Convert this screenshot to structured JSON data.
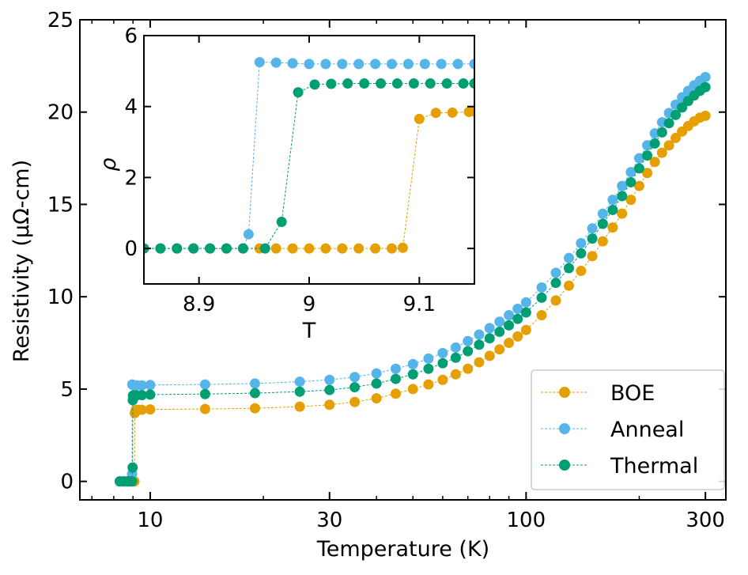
{
  "chart_data": [
    {
      "type": "line",
      "subtype": "scatter-line",
      "xscale": "log",
      "xlabel": "Temperature (K)",
      "ylabel": "Resistivity (μΩ-cm)",
      "xlim": [
        6.5,
        340
      ],
      "ylim": [
        -1,
        25
      ],
      "xticks": [
        10,
        30,
        100,
        300
      ],
      "xtick_labels": [
        "10",
        "30",
        "100",
        "300"
      ],
      "yticks": [
        0,
        5,
        10,
        15,
        20,
        25
      ],
      "ytick_labels": [
        "0",
        "5",
        "10",
        "15",
        "20",
        "25"
      ],
      "legend": {
        "position": "bottom-right",
        "entries": [
          "BOE",
          "Anneal",
          "Thermal"
        ]
      },
      "series": [
        {
          "name": "BOE",
          "color": "#E69F00",
          "x": [
            8.3,
            8.5,
            8.7,
            8.8,
            8.9,
            9.0,
            9.08,
            9.1,
            9.15,
            9.2,
            9.3,
            9.5,
            10,
            14,
            19,
            25,
            30,
            35,
            40,
            45,
            50,
            55,
            60,
            65,
            70,
            75,
            80,
            85,
            90,
            95,
            100,
            110,
            120,
            130,
            140,
            150,
            160,
            170,
            180,
            190,
            200,
            210,
            220,
            230,
            240,
            250,
            260,
            270,
            280,
            290,
            300
          ],
          "y": [
            0,
            0,
            0,
            0,
            0,
            0,
            0,
            3.7,
            3.85,
            3.87,
            3.88,
            3.88,
            3.9,
            3.92,
            3.96,
            4.05,
            4.15,
            4.3,
            4.5,
            4.75,
            5.0,
            5.25,
            5.5,
            5.8,
            6.1,
            6.45,
            6.8,
            7.15,
            7.5,
            7.85,
            8.2,
            9.0,
            9.8,
            10.6,
            11.4,
            12.2,
            13.0,
            13.75,
            14.5,
            15.25,
            16.0,
            16.7,
            17.3,
            17.8,
            18.2,
            18.6,
            18.95,
            19.25,
            19.5,
            19.7,
            19.8
          ]
        },
        {
          "name": "Anneal",
          "color": "#56B4E9",
          "x": [
            8.3,
            8.5,
            8.7,
            8.8,
            8.9,
            8.95,
            8.96,
            9.0,
            9.05,
            9.1,
            9.2,
            9.5,
            10,
            14,
            19,
            25,
            30,
            35,
            40,
            45,
            50,
            55,
            60,
            65,
            70,
            75,
            80,
            85,
            90,
            95,
            100,
            110,
            120,
            130,
            140,
            150,
            160,
            170,
            180,
            190,
            200,
            210,
            220,
            230,
            240,
            250,
            260,
            270,
            280,
            290,
            300
          ],
          "y": [
            0,
            0,
            0,
            0,
            0,
            0.4,
            5.25,
            5.22,
            5.2,
            5.2,
            5.2,
            5.2,
            5.22,
            5.25,
            5.3,
            5.4,
            5.5,
            5.65,
            5.85,
            6.1,
            6.35,
            6.65,
            6.95,
            7.25,
            7.6,
            7.95,
            8.3,
            8.65,
            9.0,
            9.35,
            9.7,
            10.5,
            11.3,
            12.1,
            12.9,
            13.7,
            14.5,
            15.25,
            16.0,
            16.75,
            17.5,
            18.2,
            18.85,
            19.45,
            19.95,
            20.4,
            20.8,
            21.15,
            21.45,
            21.7,
            21.9
          ]
        },
        {
          "name": "Thermal",
          "color": "#009E73",
          "x": [
            8.3,
            8.5,
            8.7,
            8.8,
            8.9,
            8.95,
            8.98,
            8.99,
            9.0,
            9.05,
            9.1,
            9.2,
            9.5,
            10,
            14,
            19,
            25,
            30,
            35,
            40,
            45,
            50,
            55,
            60,
            65,
            70,
            75,
            80,
            85,
            90,
            95,
            100,
            110,
            120,
            130,
            140,
            150,
            160,
            170,
            180,
            190,
            200,
            210,
            220,
            230,
            240,
            250,
            260,
            270,
            280,
            290,
            300
          ],
          "y": [
            0,
            0,
            0,
            0,
            0,
            0,
            0.75,
            4.4,
            4.65,
            4.66,
            4.66,
            4.66,
            4.67,
            4.7,
            4.73,
            4.78,
            4.86,
            4.95,
            5.1,
            5.3,
            5.55,
            5.8,
            6.1,
            6.4,
            6.7,
            7.05,
            7.4,
            7.75,
            8.1,
            8.45,
            8.8,
            9.15,
            9.95,
            10.75,
            11.55,
            12.35,
            13.15,
            13.95,
            14.7,
            15.45,
            16.2,
            16.95,
            17.65,
            18.3,
            18.9,
            19.4,
            19.85,
            20.25,
            20.6,
            20.9,
            21.15,
            21.35
          ]
        }
      ]
    },
    {
      "type": "line",
      "subtype": "inset",
      "xlabel": "T",
      "ylabel": "ρ",
      "xlim": [
        8.85,
        9.15
      ],
      "ylim": [
        -1,
        6
      ],
      "xticks": [
        8.9,
        9.0,
        9.1
      ],
      "xtick_labels": [
        "8.9",
        "9",
        "9.1"
      ],
      "yticks": [
        0,
        2,
        4,
        6
      ],
      "ytick_labels": [
        "0",
        "2",
        "4",
        "6"
      ],
      "series": [
        {
          "name": "BOE",
          "color": "#E69F00",
          "x": [
            8.85,
            8.865,
            8.88,
            8.895,
            8.91,
            8.925,
            8.94,
            8.955,
            8.97,
            8.985,
            9.0,
            9.015,
            9.03,
            9.045,
            9.06,
            9.075,
            9.085,
            9.1,
            9.115,
            9.13,
            9.145,
            9.15
          ],
          "y": [
            0,
            0,
            0,
            0,
            0,
            0,
            0,
            0,
            0,
            0,
            0,
            0,
            0,
            0,
            0,
            0,
            0.02,
            3.65,
            3.82,
            3.83,
            3.85,
            3.86
          ]
        },
        {
          "name": "Anneal",
          "color": "#56B4E9",
          "x": [
            8.85,
            8.865,
            8.88,
            8.895,
            8.91,
            8.925,
            8.94,
            8.945,
            8.955,
            8.97,
            8.985,
            9.0,
            9.015,
            9.03,
            9.045,
            9.06,
            9.075,
            9.09,
            9.105,
            9.12,
            9.135,
            9.15
          ],
          "y": [
            0,
            0,
            0,
            0,
            0,
            0,
            0,
            0.4,
            5.25,
            5.24,
            5.22,
            5.2,
            5.2,
            5.2,
            5.2,
            5.2,
            5.2,
            5.2,
            5.2,
            5.2,
            5.2,
            5.2
          ],
          "points_clip": true
        },
        {
          "name": "Thermal",
          "color": "#009E73",
          "x": [
            8.85,
            8.865,
            8.88,
            8.895,
            8.91,
            8.925,
            8.94,
            8.96,
            8.975,
            8.99,
            9.005,
            9.02,
            9.035,
            9.05,
            9.065,
            9.08,
            9.095,
            9.11,
            9.125,
            9.14,
            9.15
          ],
          "y": [
            0,
            0,
            0,
            0,
            0,
            0,
            0,
            0.0,
            0.75,
            4.4,
            4.62,
            4.64,
            4.65,
            4.65,
            4.65,
            4.65,
            4.65,
            4.65,
            4.65,
            4.65,
            4.65
          ]
        }
      ]
    }
  ]
}
